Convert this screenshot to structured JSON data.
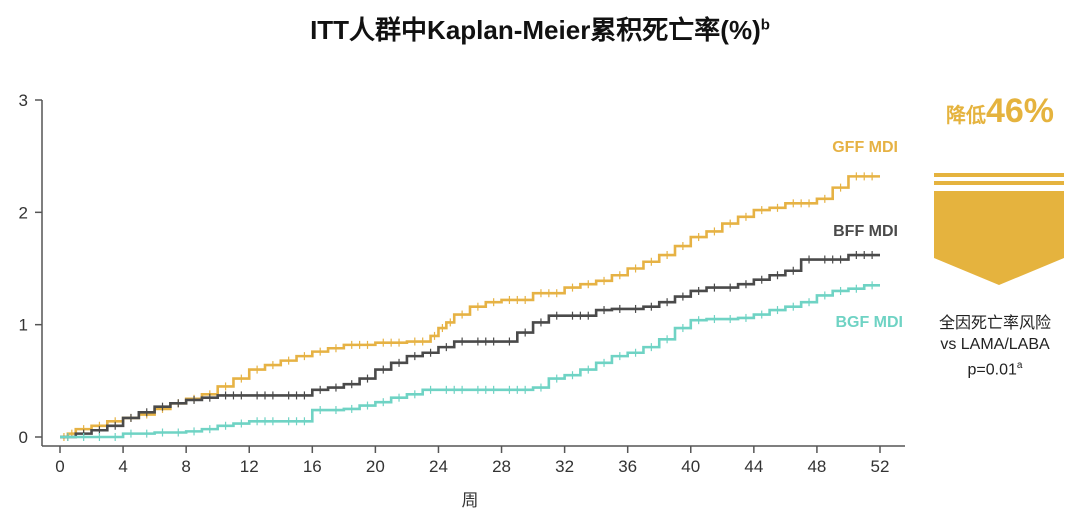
{
  "title": {
    "main": "ITT人群中Kaplan-Meier累积死亡率(%)",
    "superscript": "b"
  },
  "colors": {
    "gff": "#e6b244",
    "bff": "#4a4a4a",
    "bgf": "#6fd3c4",
    "accent": "#e5b33e",
    "axis": "#555555"
  },
  "reduction": {
    "prefix": "降低",
    "value": "46%"
  },
  "risk_note": {
    "line1": "全因死亡率风险",
    "line2": "vs LAMA/LABA",
    "line3": "p=0.01",
    "line3_sup": "a"
  },
  "chart_data": {
    "type": "line",
    "title": "ITT人群中Kaplan-Meier累积死亡率(%)",
    "xlabel": "周",
    "ylabel": "",
    "xlim": [
      0,
      52
    ],
    "ylim": [
      0,
      3
    ],
    "xticks": [
      0,
      4,
      8,
      12,
      16,
      20,
      24,
      28,
      32,
      36,
      40,
      44,
      48,
      52
    ],
    "yticks": [
      0,
      1,
      2,
      3
    ],
    "grid": false,
    "series": [
      {
        "name": "GFF MDI",
        "color": "#e6b244",
        "x": [
          0,
          0.5,
          1,
          2,
          3,
          4,
          5,
          6,
          7,
          8,
          9,
          10,
          11,
          12,
          13,
          14,
          15,
          16,
          17,
          18,
          20,
          22,
          23.5,
          24,
          24.5,
          25,
          26,
          27,
          28,
          30,
          32,
          33,
          34,
          35,
          36,
          37,
          38,
          39,
          40,
          41,
          42,
          43,
          44,
          45,
          46,
          48,
          49,
          50,
          52
        ],
        "y": [
          0,
          0.03,
          0.07,
          0.1,
          0.14,
          0.17,
          0.2,
          0.25,
          0.3,
          0.34,
          0.38,
          0.45,
          0.52,
          0.6,
          0.64,
          0.68,
          0.72,
          0.76,
          0.79,
          0.82,
          0.84,
          0.85,
          0.9,
          0.97,
          1.02,
          1.09,
          1.16,
          1.2,
          1.22,
          1.28,
          1.33,
          1.36,
          1.39,
          1.44,
          1.5,
          1.56,
          1.62,
          1.7,
          1.78,
          1.83,
          1.9,
          1.96,
          2.02,
          2.04,
          2.08,
          2.12,
          2.22,
          2.32,
          2.32
        ]
      },
      {
        "name": "BFF MDI",
        "color": "#4a4a4a",
        "x": [
          0,
          1,
          2,
          3,
          4,
          5,
          6,
          7,
          8,
          9,
          10,
          12,
          14,
          16,
          17,
          18,
          19,
          20,
          21,
          22,
          23,
          24,
          25,
          26,
          28,
          29,
          30,
          31,
          32,
          34,
          35,
          36,
          37,
          38,
          39,
          40,
          41,
          42,
          43,
          44,
          45,
          46,
          47,
          48,
          50,
          52
        ],
        "y": [
          0,
          0.03,
          0.06,
          0.1,
          0.17,
          0.22,
          0.27,
          0.3,
          0.33,
          0.35,
          0.37,
          0.37,
          0.37,
          0.42,
          0.44,
          0.47,
          0.52,
          0.6,
          0.66,
          0.72,
          0.75,
          0.8,
          0.85,
          0.85,
          0.85,
          0.93,
          1.02,
          1.08,
          1.08,
          1.13,
          1.14,
          1.14,
          1.16,
          1.2,
          1.25,
          1.3,
          1.33,
          1.33,
          1.36,
          1.4,
          1.44,
          1.48,
          1.58,
          1.58,
          1.62,
          1.62
        ]
      },
      {
        "name": "BGF MDI",
        "color": "#6fd3c4",
        "x": [
          0,
          1,
          2,
          3,
          4,
          5,
          6,
          7,
          8,
          9,
          10,
          11,
          12,
          14,
          16,
          17,
          18,
          19,
          20,
          21,
          22,
          23,
          24,
          26,
          28,
          30,
          31,
          32,
          33,
          34,
          35,
          36,
          37,
          38,
          39,
          40,
          41,
          42,
          43,
          44,
          45,
          46,
          47,
          48,
          49,
          50,
          51,
          52
        ],
        "y": [
          0,
          0,
          0,
          0,
          0.03,
          0.03,
          0.04,
          0.04,
          0.05,
          0.07,
          0.1,
          0.12,
          0.14,
          0.14,
          0.24,
          0.24,
          0.25,
          0.28,
          0.31,
          0.35,
          0.38,
          0.42,
          0.42,
          0.42,
          0.42,
          0.44,
          0.52,
          0.55,
          0.6,
          0.66,
          0.72,
          0.75,
          0.8,
          0.87,
          0.97,
          1.04,
          1.05,
          1.05,
          1.06,
          1.09,
          1.13,
          1.16,
          1.2,
          1.26,
          1.3,
          1.32,
          1.35,
          1.35
        ]
      }
    ]
  }
}
